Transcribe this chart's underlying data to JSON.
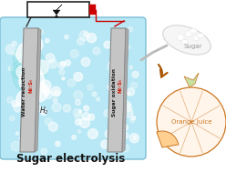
{
  "tank_facecolor": "#b8e8f5",
  "tank_edgecolor": "#7bbdd4",
  "bubble_color_white": "#ffffff",
  "bubble_color_cyan": "#88dde8",
  "electrode_facecolor": "#c8c8c8",
  "electrode_edgecolor": "#909090",
  "electrode_label_color": "#1a1a1a",
  "electrode_ni_color": "#cc1100",
  "battery_facecolor": "#ffffff",
  "battery_edgecolor": "#222222",
  "battery_terminal_color": "#cc0000",
  "wire_color_black": "#333333",
  "wire_color_red": "#cc0000",
  "title": "Sugar electrolysis",
  "title_color": "#111111",
  "title_fontsize": 8.5,
  "sugar_text": "Sugar",
  "sugar_text_color": "#999999",
  "orange_text": "Orange juice",
  "orange_text_color": "#cc7722",
  "arrow_color": "#aa5500",
  "spoon_color": "#cccccc",
  "orange_outline_color": "#cc7722",
  "orange_fill_color": "#fff5ea"
}
